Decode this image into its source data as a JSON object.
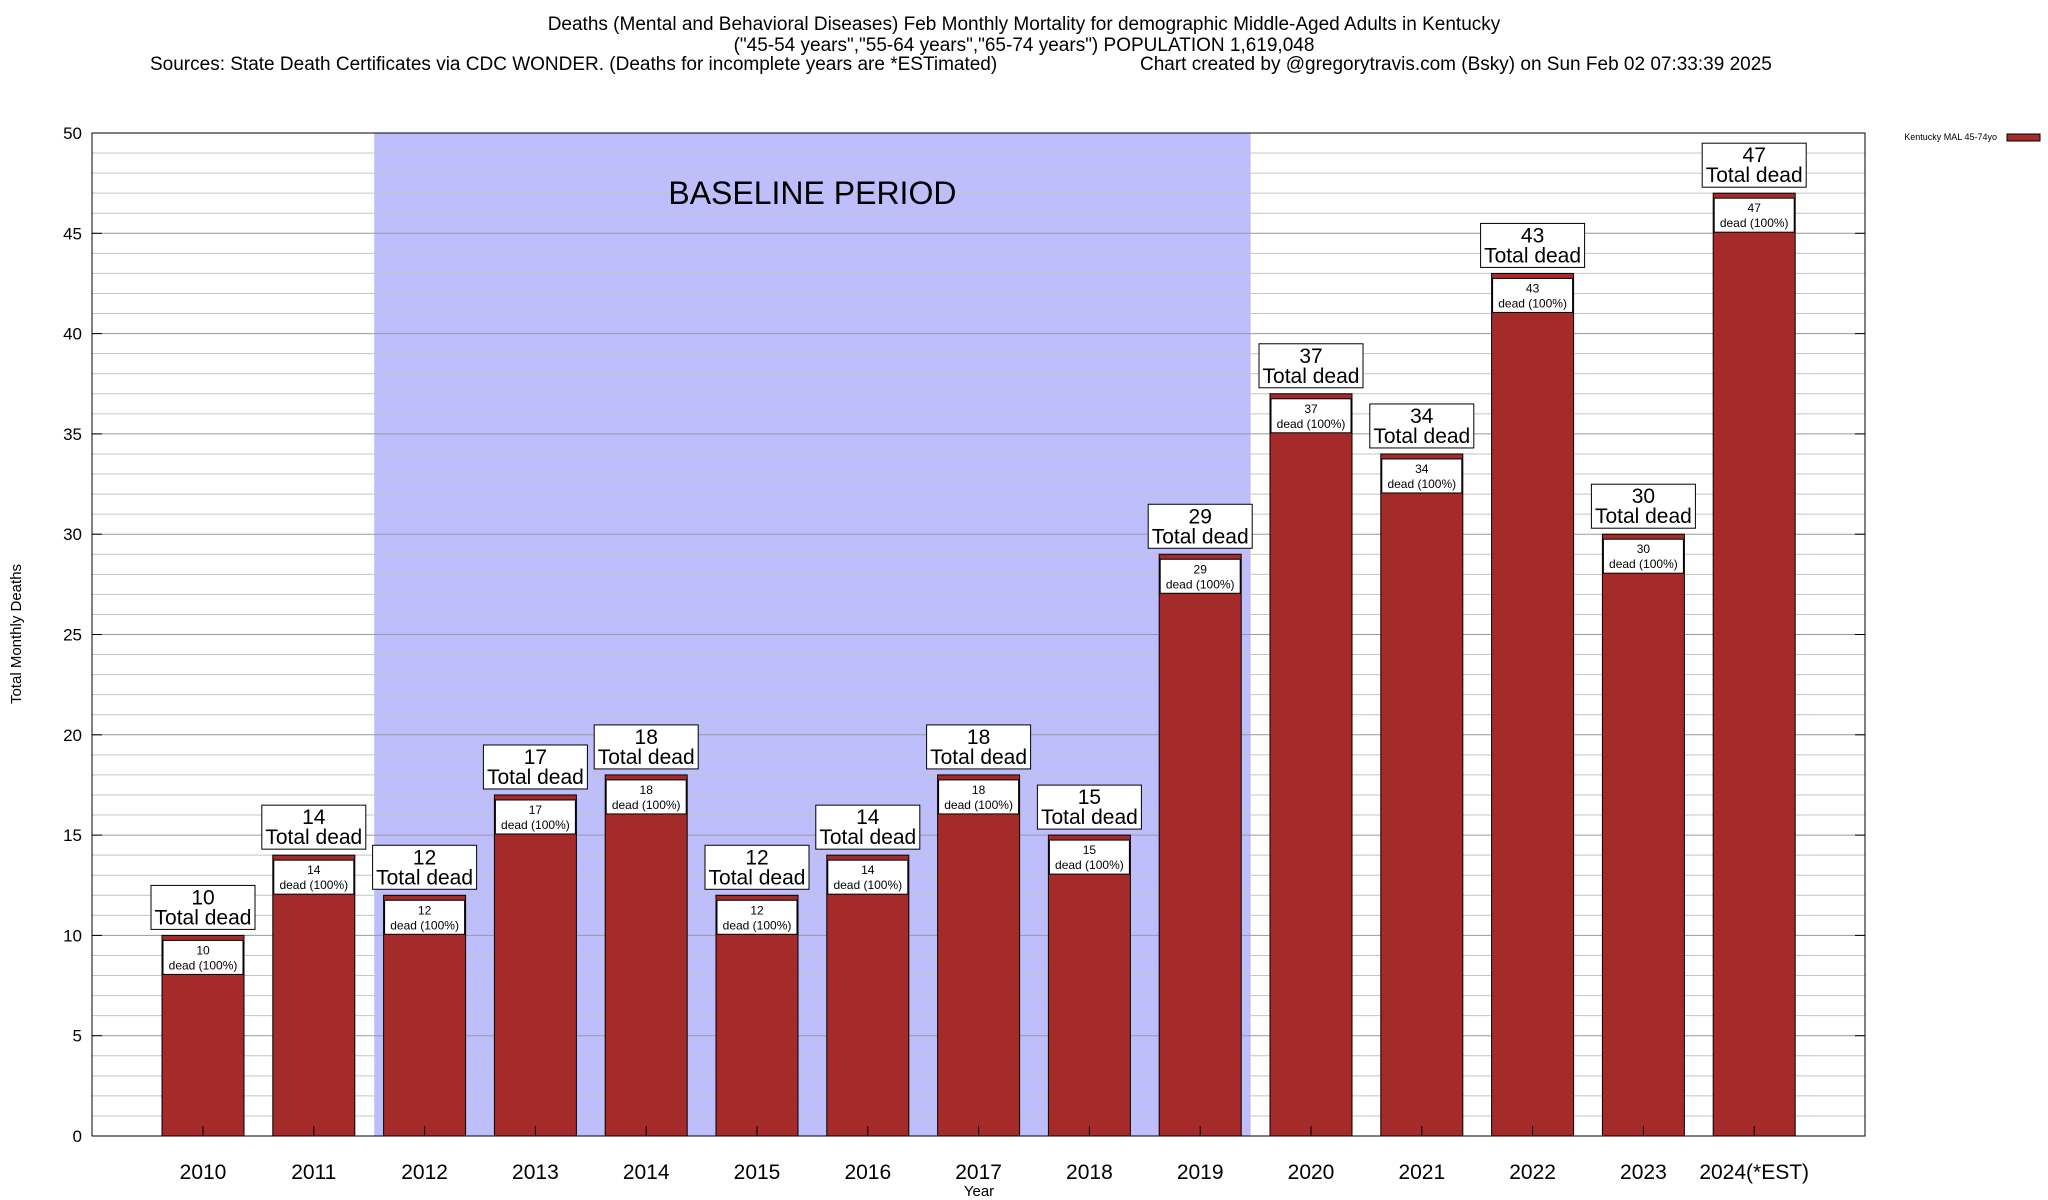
{
  "title": {
    "line1": "Deaths (Mental and Behavioral Diseases) Feb Monthly Mortality for demographic Middle-Aged Adults in Kentucky",
    "line2": "(\"45-54 years\",\"55-64 years\",\"65-74 years\") POPULATION 1,619,048",
    "sources": "Sources: State Death Certificates via CDC WONDER. (Deaths for incomplete years are *ESTimated)",
    "credit": "Chart created by @gregorytravis.com (Bsky) on Sun Feb 02 07:33:39 2025"
  },
  "chart_data": {
    "type": "bar",
    "categories": [
      "2010",
      "2011",
      "2012",
      "2013",
      "2014",
      "2015",
      "2016",
      "2017",
      "2018",
      "2019",
      "2020",
      "2021",
      "2022",
      "2023",
      "2024(*EST)"
    ],
    "series": [
      {
        "name": "Kentucky MAL 45-74yo",
        "values": [
          10,
          14,
          12,
          17,
          18,
          12,
          14,
          18,
          15,
          29,
          37,
          34,
          43,
          30,
          47
        ],
        "color": "#a52a2a"
      }
    ],
    "xlabel": "Year",
    "ylabel": "Total Monthly Deaths",
    "ylim": [
      0,
      50
    ],
    "yticks": [
      0,
      5,
      10,
      15,
      20,
      25,
      30,
      35,
      40,
      45,
      50
    ],
    "grid": true,
    "legend_position": "top-right",
    "total_label_text": "Total dead",
    "inner_label_text": "dead (100%)",
    "annotation": {
      "text": "BASELINE PERIOD",
      "start_category": "2012",
      "end_category": "2019",
      "color": "#bebefc"
    }
  }
}
